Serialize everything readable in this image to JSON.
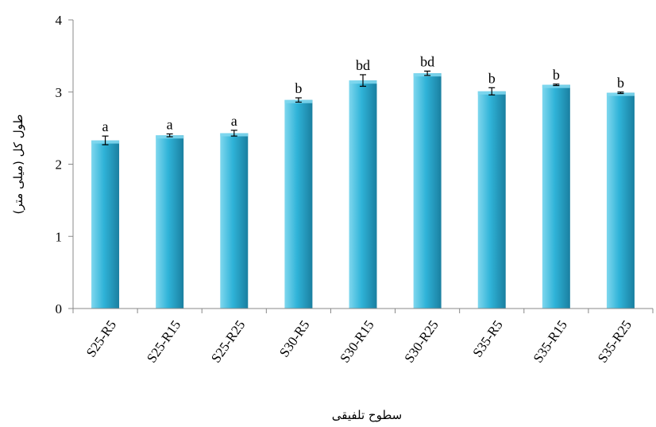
{
  "chart_data": {
    "type": "bar",
    "categories": [
      "S25-R5",
      "S25-R15",
      "S25-R25",
      "S30-R5",
      "S30-R15",
      "S30-R25",
      "S35-R5",
      "S35-R15",
      "S35-R25"
    ],
    "values": [
      2.33,
      2.4,
      2.43,
      2.89,
      3.16,
      3.26,
      3.01,
      3.1,
      2.99
    ],
    "errors": [
      0.06,
      0.02,
      0.04,
      0.03,
      0.08,
      0.03,
      0.05,
      0.01,
      0.01
    ],
    "significance": [
      "a",
      "a",
      "a",
      "b",
      "bd",
      "bd",
      "b",
      "b",
      "b"
    ],
    "xlabel": "سطوح تلفیقی",
    "ylabel": "طول کل (میلی متر)",
    "ylim": [
      0,
      4
    ],
    "yticks": [
      0,
      1,
      2,
      3,
      4
    ],
    "grid": false,
    "legend": "none",
    "bar_color": "#2fb3d8",
    "bar_color_dark": "#1a7fa0",
    "bar_color_light": "#7fd7ee"
  }
}
